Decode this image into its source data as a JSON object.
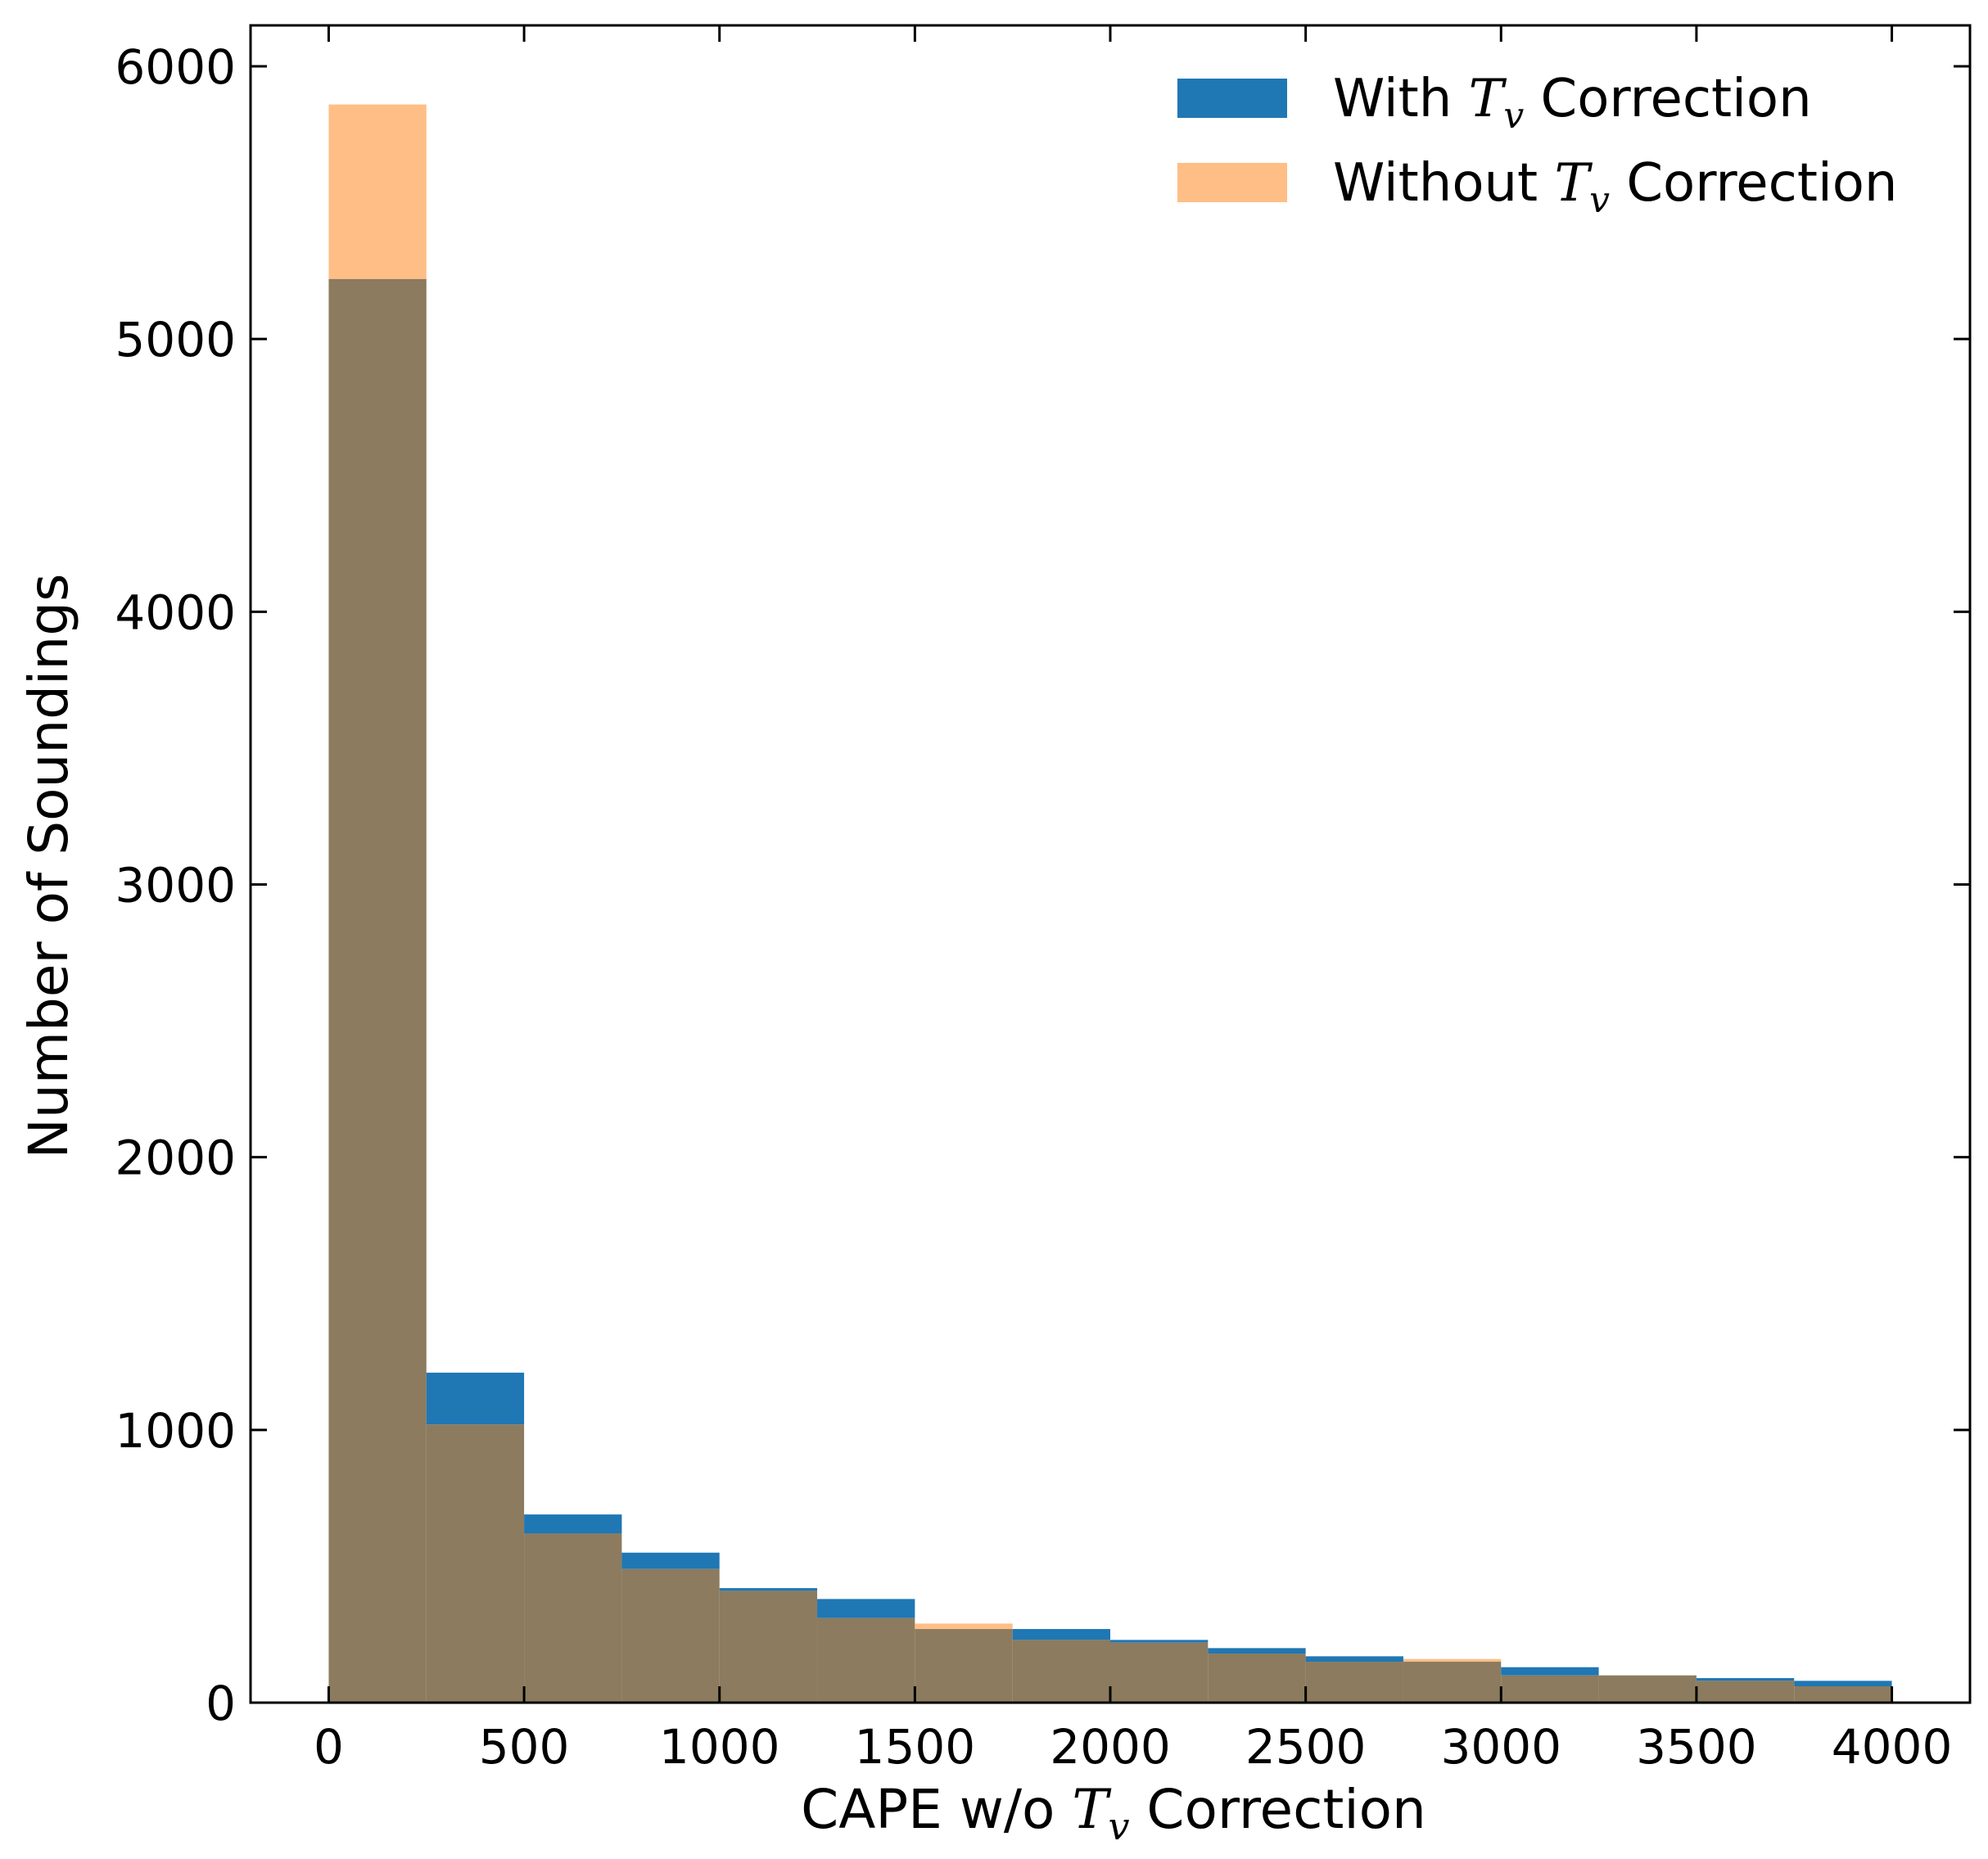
{
  "chart_data": {
    "type": "bar",
    "histogram": true,
    "bin_edges": [
      0,
      250,
      500,
      750,
      1000,
      1250,
      1500,
      1750,
      2000,
      2250,
      2500,
      2750,
      3000,
      3250,
      3500,
      3750,
      4000
    ],
    "series": [
      {
        "name": "With Tv Correction",
        "legend_prefix": "With ",
        "legend_symbol": "T",
        "legend_subscript": "v",
        "legend_suffix": " Correction",
        "color": "#1f77b4",
        "values": [
          5220,
          1210,
          690,
          550,
          420,
          380,
          270,
          270,
          230,
          200,
          170,
          150,
          130,
          100,
          90,
          80
        ]
      },
      {
        "name": "Without Tv Correction",
        "legend_prefix": "Without ",
        "legend_symbol": "T",
        "legend_subscript": "v",
        "legend_suffix": " Correction",
        "color": "#ffbe86",
        "values": [
          5860,
          1020,
          620,
          490,
          410,
          310,
          290,
          230,
          220,
          180,
          150,
          160,
          100,
          100,
          80,
          60
        ]
      }
    ],
    "overlap_color": "#8c7b5e",
    "xlabel": {
      "prefix": "CAPE w/o ",
      "symbol": "T",
      "subscript": "v",
      "suffix": " Correction"
    },
    "ylabel": "Number of Soundings",
    "xlim": [
      -200,
      4200
    ],
    "ylim": [
      0,
      6150
    ],
    "xticks": [
      0,
      500,
      1000,
      1500,
      2000,
      2500,
      3000,
      3500,
      4000
    ],
    "yticks": [
      0,
      1000,
      2000,
      3000,
      4000,
      5000,
      6000
    ],
    "grid": false,
    "legend_position": "top-right"
  }
}
